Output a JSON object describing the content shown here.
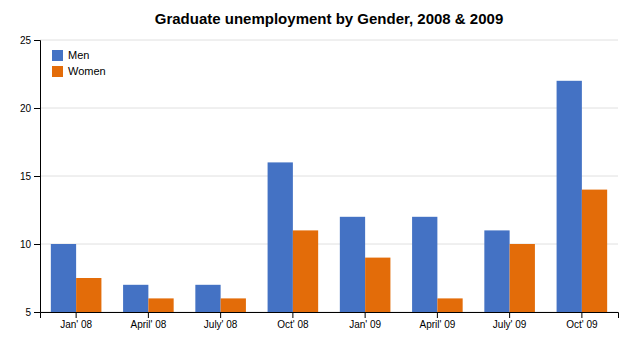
{
  "chart_data": {
    "type": "bar",
    "title": "Graduate unemployment by Gender, 2008 & 2009",
    "categories": [
      "Jan' 08",
      "April' 08",
      "July' 08",
      "Oct' 08",
      "Jan' 09",
      "April' 09",
      "July' 09",
      "Oct' 09"
    ],
    "series": [
      {
        "name": "Men",
        "color": "#4472C4",
        "values": [
          10,
          7,
          7,
          16,
          12,
          12,
          11,
          22
        ]
      },
      {
        "name": "Women",
        "color": "#E36C09",
        "values": [
          7.5,
          6,
          6,
          11,
          9,
          6,
          10,
          14
        ]
      }
    ],
    "ylim": [
      5,
      25
    ],
    "yticks": [
      5,
      10,
      15,
      20,
      25
    ],
    "grid": true,
    "legend": "upper-left"
  }
}
